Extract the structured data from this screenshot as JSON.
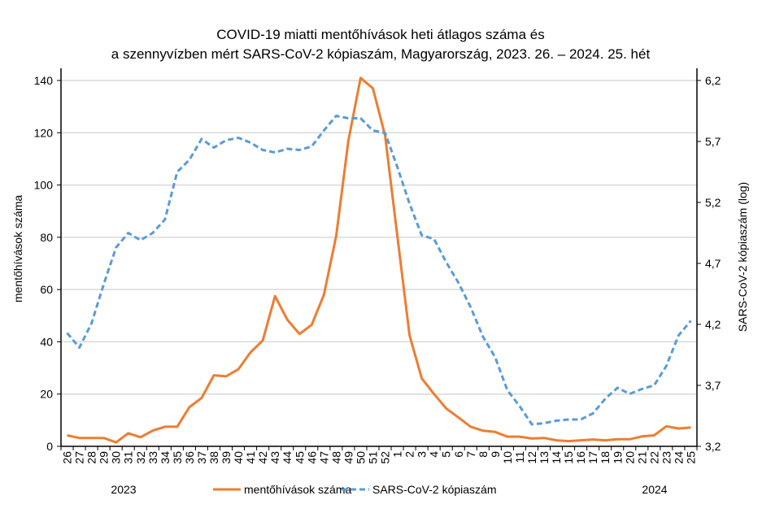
{
  "chart_data": {
    "type": "line",
    "title": [
      "COVID-19 miatti mentőhívások heti átlagos száma és",
      "a szennyvízben mért SARS-CoV-2 kópiaszám, Magyarország, 2023. 26. – 2024. 25. hét"
    ],
    "ylabel": "mentőhívások száma",
    "y2label": "SARS-CoV-2 kópiaszám (log)",
    "ylim": [
      0,
      140
    ],
    "y2lim": [
      3.2,
      6.2
    ],
    "yticks": [
      "0",
      "20",
      "40",
      "60",
      "80",
      "100",
      "120",
      "140"
    ],
    "y2ticks": [
      "3,2",
      "3,7",
      "4,2",
      "4,7",
      "5,2",
      "5,7",
      "6,2"
    ],
    "grid": true,
    "year_labels": [
      "2023",
      "2024"
    ],
    "legend_position": "bottom",
    "categories": [
      "26",
      "27",
      "28",
      "29",
      "30",
      "31",
      "32",
      "33",
      "34",
      "35",
      "36",
      "37",
      "38",
      "39",
      "40",
      "41",
      "42",
      "43",
      "44",
      "45",
      "46",
      "47",
      "48",
      "49",
      "50",
      "51",
      "52",
      "1",
      "2",
      "3",
      "4",
      "5",
      "6",
      "7",
      "8",
      "9",
      "10",
      "11",
      "12",
      "13",
      "14",
      "15",
      "16",
      "17",
      "18",
      "19",
      "20",
      "21",
      "22",
      "23",
      "24",
      "25"
    ],
    "series": [
      {
        "name": "mentőhívások száma",
        "axis": "left",
        "color": "#ED7D31",
        "style": "solid",
        "values": [
          4.2,
          3.2,
          3.2,
          3.2,
          1.5,
          5,
          3.5,
          6,
          7.5,
          7.5,
          15,
          18.5,
          27.2,
          26.8,
          29.5,
          36,
          40.5,
          57.5,
          48.5,
          43,
          46.5,
          58,
          80.5,
          117,
          141,
          137,
          119,
          80.5,
          42.5,
          26,
          20,
          14.5,
          11,
          7.5,
          6,
          5.5,
          3.7,
          3.7,
          3,
          3.2,
          2.3,
          2,
          2.3,
          2.6,
          2.3,
          2.7,
          2.7,
          3.8,
          4.2,
          7.7,
          6.8,
          7.2
        ]
      },
      {
        "name": "SARS-CoV-2 kópiaszám",
        "axis": "right",
        "color": "#5B9BD5",
        "style": "dashed",
        "values": [
          4.13,
          4.01,
          4.21,
          4.53,
          4.83,
          4.95,
          4.89,
          4.95,
          5.06,
          5.45,
          5.55,
          5.72,
          5.65,
          5.71,
          5.73,
          5.69,
          5.63,
          5.61,
          5.64,
          5.63,
          5.66,
          5.79,
          5.91,
          5.89,
          5.89,
          5.79,
          5.77,
          5.49,
          5.19,
          4.93,
          4.9,
          4.71,
          4.54,
          4.34,
          4.1,
          3.93,
          3.66,
          3.53,
          3.38,
          3.39,
          3.41,
          3.42,
          3.42,
          3.47,
          3.59,
          3.68,
          3.63,
          3.67,
          3.7,
          3.86,
          4.11,
          4.23
        ]
      }
    ]
  }
}
